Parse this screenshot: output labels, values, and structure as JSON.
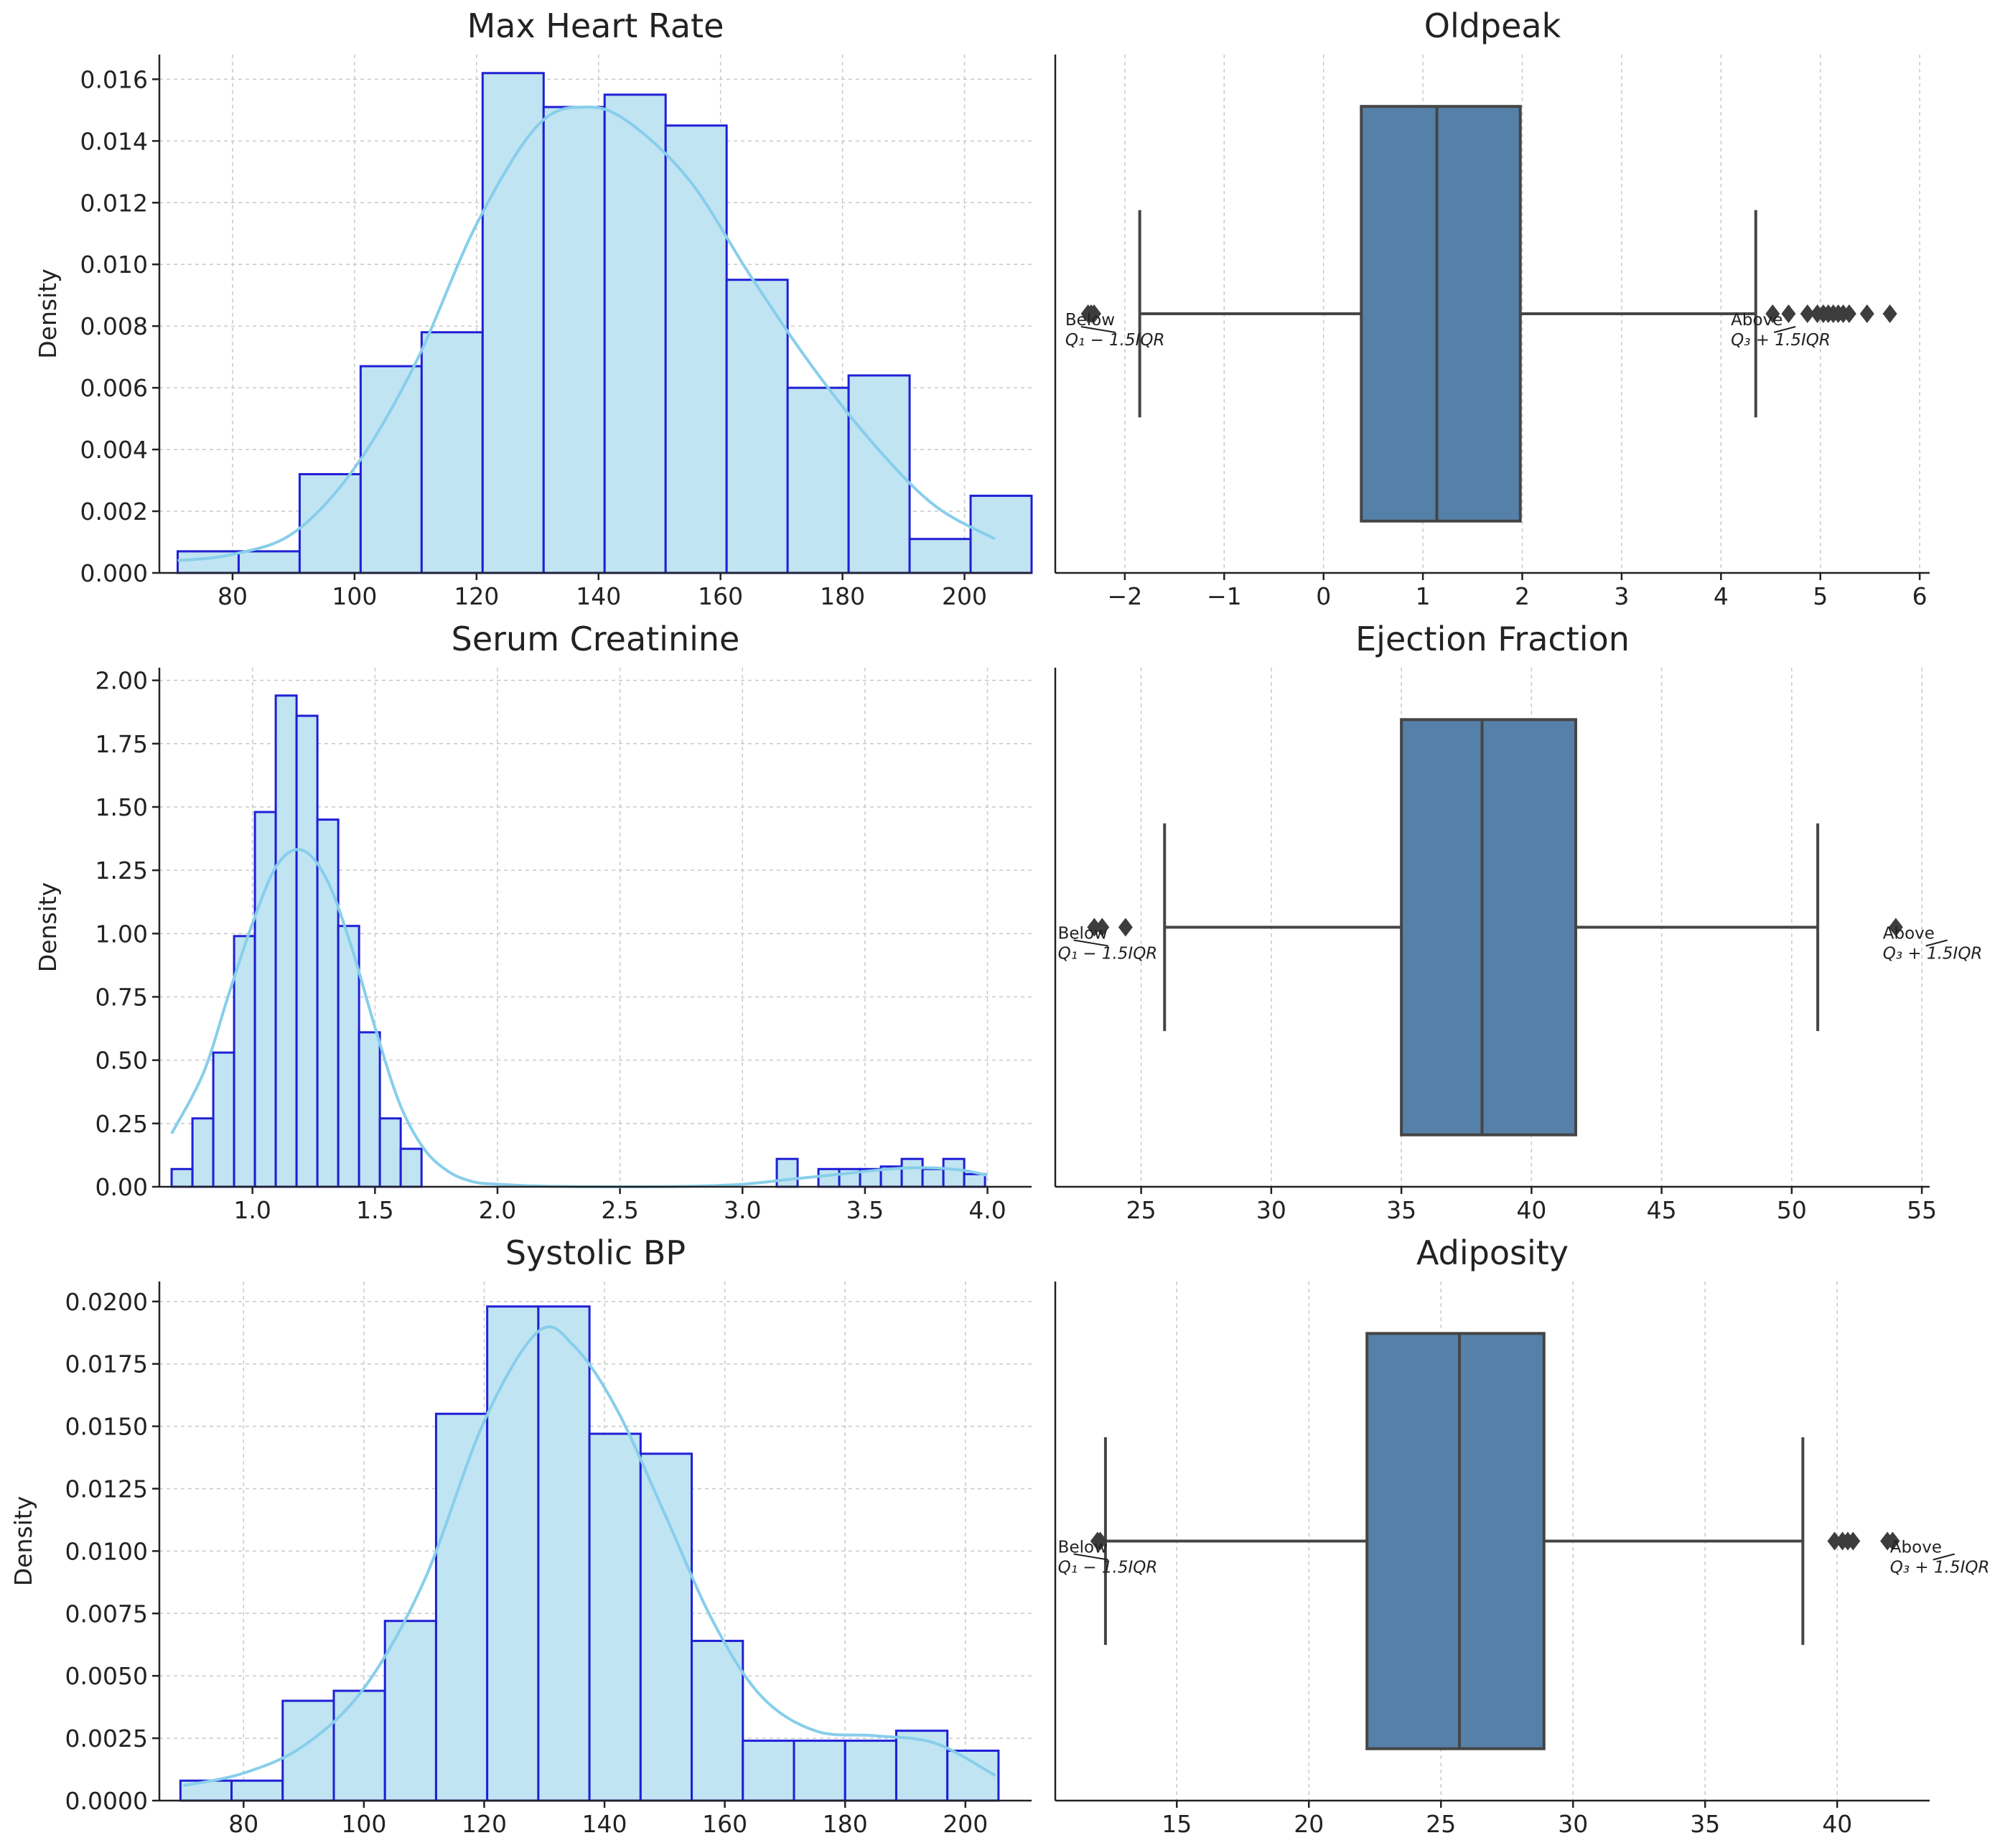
{
  "chart_data": [
    {
      "type": "histogram",
      "title": "Max Heart Rate",
      "ylabel": "Density",
      "xlim": [
        68,
        211
      ],
      "ylim": [
        0,
        0.0168
      ],
      "xticks": [
        80,
        100,
        120,
        140,
        160,
        180,
        200
      ],
      "xtick_labels": [
        "80",
        "100",
        "120",
        "140",
        "160",
        "180",
        "200"
      ],
      "yticks": [
        0,
        0.002,
        0.004,
        0.006,
        0.008,
        0.01,
        0.012,
        0.014,
        0.016
      ],
      "ytick_labels": [
        "0.000",
        "0.002",
        "0.004",
        "0.006",
        "0.008",
        "0.010",
        "0.012",
        "0.014",
        "0.016"
      ],
      "bins": [
        [
          71,
          81,
          0.0007
        ],
        [
          81,
          91,
          0.0007
        ],
        [
          91,
          101,
          0.0032
        ],
        [
          101,
          111,
          0.0067
        ],
        [
          111,
          121,
          0.0078
        ],
        [
          121,
          131,
          0.0162
        ],
        [
          131,
          141,
          0.0151
        ],
        [
          141,
          151,
          0.0155
        ],
        [
          151,
          161,
          0.0145
        ],
        [
          161,
          171,
          0.0095
        ],
        [
          171,
          181,
          0.006
        ],
        [
          181,
          191,
          0.0064
        ],
        [
          191,
          201,
          0.0011
        ],
        [
          201,
          211,
          0.0025
        ]
      ],
      "kde": [
        [
          71,
          0.0004
        ],
        [
          80,
          0.0006
        ],
        [
          90,
          0.0013
        ],
        [
          100,
          0.0034
        ],
        [
          110,
          0.0068
        ],
        [
          120,
          0.0113
        ],
        [
          130,
          0.0145
        ],
        [
          138,
          0.0151
        ],
        [
          145,
          0.0146
        ],
        [
          155,
          0.0127
        ],
        [
          165,
          0.0096
        ],
        [
          175,
          0.0067
        ],
        [
          185,
          0.0042
        ],
        [
          195,
          0.0022
        ],
        [
          205,
          0.0011
        ]
      ]
    },
    {
      "type": "boxplot",
      "title": "Oldpeak",
      "xlim": [
        -2.7,
        6.1
      ],
      "xticks": [
        -2,
        -1,
        0,
        1,
        2,
        3,
        4,
        5,
        6
      ],
      "xtick_labels": [
        "−2",
        "−1",
        "0",
        "1",
        "2",
        "3",
        "4",
        "5",
        "6"
      ],
      "q1": 0.38,
      "median": 1.14,
      "q3": 1.98,
      "whisker_low": -1.85,
      "whisker_high": 4.35,
      "outliers": [
        -2.37,
        -2.34,
        -2.31,
        4.52,
        4.68,
        4.87,
        4.97,
        5.03,
        5.08,
        5.13,
        5.18,
        5.23,
        5.29,
        5.47,
        5.7
      ],
      "annotations": [
        {
          "label": "Below",
          "formula": "Q₁ − 1.5IQR",
          "x": -2.6
        },
        {
          "label": "Above",
          "formula": "Q₃ + 1.5IQR",
          "x": 4.1
        }
      ]
    },
    {
      "type": "histogram",
      "title": "Serum Creatinine",
      "ylabel": "Density",
      "xlim": [
        0.62,
        4.18
      ],
      "ylim": [
        0,
        2.05
      ],
      "xticks": [
        1.0,
        1.5,
        2.0,
        2.5,
        3.0,
        3.5,
        4.0
      ],
      "xtick_labels": [
        "1.0",
        "1.5",
        "2.0",
        "2.5",
        "3.0",
        "3.5",
        "4.0"
      ],
      "yticks": [
        0,
        0.25,
        0.5,
        0.75,
        1.0,
        1.25,
        1.5,
        1.75,
        2.0
      ],
      "ytick_labels": [
        "0.00",
        "0.25",
        "0.50",
        "0.75",
        "1.00",
        "1.25",
        "1.50",
        "1.75",
        "2.00"
      ],
      "bins": [
        [
          0.67,
          0.755,
          0.07
        ],
        [
          0.755,
          0.84,
          0.27
        ],
        [
          0.84,
          0.925,
          0.53
        ],
        [
          0.925,
          1.01,
          0.99
        ],
        [
          1.01,
          1.095,
          1.48
        ],
        [
          1.095,
          1.18,
          1.94
        ],
        [
          1.18,
          1.265,
          1.86
        ],
        [
          1.265,
          1.35,
          1.45
        ],
        [
          1.35,
          1.435,
          1.03
        ],
        [
          1.435,
          1.52,
          0.61
        ],
        [
          1.52,
          1.605,
          0.27
        ],
        [
          1.605,
          1.69,
          0.15
        ],
        [
          3.14,
          3.225,
          0.11
        ],
        [
          3.31,
          3.395,
          0.07
        ],
        [
          3.395,
          3.48,
          0.07
        ],
        [
          3.48,
          3.565,
          0.07
        ],
        [
          3.565,
          3.65,
          0.08
        ],
        [
          3.65,
          3.735,
          0.11
        ],
        [
          3.735,
          3.82,
          0.07
        ],
        [
          3.82,
          3.905,
          0.11
        ],
        [
          3.905,
          3.99,
          0.05
        ]
      ],
      "kde": [
        [
          0.67,
          0.21
        ],
        [
          0.8,
          0.45
        ],
        [
          0.9,
          0.75
        ],
        [
          1.0,
          1.04
        ],
        [
          1.1,
          1.27
        ],
        [
          1.2,
          1.33
        ],
        [
          1.3,
          1.22
        ],
        [
          1.4,
          0.96
        ],
        [
          1.5,
          0.63
        ],
        [
          1.6,
          0.33
        ],
        [
          1.7,
          0.15
        ],
        [
          1.8,
          0.06
        ],
        [
          1.9,
          0.02
        ],
        [
          2.0,
          0.01
        ],
        [
          2.2,
          0.002
        ],
        [
          2.5,
          0.0
        ],
        [
          2.8,
          0.002
        ],
        [
          3.0,
          0.01
        ],
        [
          3.2,
          0.03
        ],
        [
          3.4,
          0.05
        ],
        [
          3.6,
          0.07
        ],
        [
          3.75,
          0.075
        ],
        [
          3.9,
          0.065
        ],
        [
          4.0,
          0.045
        ]
      ]
    },
    {
      "type": "boxplot",
      "title": "Ejection Fraction",
      "xlim": [
        21.7,
        55.3
      ],
      "xticks": [
        25,
        30,
        35,
        40,
        45,
        50,
        55
      ],
      "xtick_labels": [
        "25",
        "30",
        "35",
        "40",
        "45",
        "50",
        "55"
      ],
      "q1": 35.0,
      "median": 38.1,
      "q3": 41.7,
      "whisker_low": 25.9,
      "whisker_high": 51.0,
      "outliers": [
        23.2,
        23.5,
        24.4,
        54.0
      ],
      "annotations": [
        {
          "label": "Below",
          "formula": "Q₁ − 1.5IQR",
          "x": 21.8
        },
        {
          "label": "Above",
          "formula": "Q₃ + 1.5IQR",
          "x": 53.5
        }
      ]
    },
    {
      "type": "histogram",
      "title": "Systolic BP",
      "ylabel": "Density",
      "xlim": [
        66,
        211
      ],
      "ylim": [
        0,
        0.0208
      ],
      "xticks": [
        80,
        100,
        120,
        140,
        160,
        180,
        200
      ],
      "xtick_labels": [
        "80",
        "100",
        "120",
        "140",
        "160",
        "180",
        "200"
      ],
      "yticks": [
        0,
        0.0025,
        0.005,
        0.0075,
        0.01,
        0.0125,
        0.015,
        0.0175,
        0.02
      ],
      "ytick_labels": [
        "0.0000",
        "0.0025",
        "0.0050",
        "0.0075",
        "0.0100",
        "0.0125",
        "0.0150",
        "0.0175",
        "0.0200"
      ],
      "bins": [
        [
          69.5,
          78,
          0.0008
        ],
        [
          78,
          86.5,
          0.0008
        ],
        [
          86.5,
          95,
          0.004
        ],
        [
          95,
          103.5,
          0.0044
        ],
        [
          103.5,
          112,
          0.0072
        ],
        [
          112,
          120.5,
          0.0155
        ],
        [
          120.5,
          129,
          0.0198
        ],
        [
          129,
          137.5,
          0.0198
        ],
        [
          137.5,
          146,
          0.0147
        ],
        [
          146,
          154.5,
          0.0139
        ],
        [
          154.5,
          163,
          0.0064
        ],
        [
          163,
          171.5,
          0.0024
        ],
        [
          171.5,
          180,
          0.0024
        ],
        [
          180,
          188.5,
          0.0024
        ],
        [
          188.5,
          197,
          0.0028
        ],
        [
          197,
          205.5,
          0.002
        ]
      ],
      "kde": [
        [
          70,
          0.0006
        ],
        [
          80,
          0.0011
        ],
        [
          90,
          0.0022
        ],
        [
          100,
          0.0045
        ],
        [
          110,
          0.0088
        ],
        [
          120,
          0.0152
        ],
        [
          129,
          0.0188
        ],
        [
          135,
          0.0182
        ],
        [
          142,
          0.0157
        ],
        [
          150,
          0.0115
        ],
        [
          158,
          0.0072
        ],
        [
          166,
          0.0042
        ],
        [
          175,
          0.0028
        ],
        [
          185,
          0.0026
        ],
        [
          195,
          0.0023
        ],
        [
          205,
          0.001
        ]
      ]
    },
    {
      "type": "boxplot",
      "title": "Adiposity",
      "xlim": [
        10.4,
        43.5
      ],
      "xticks": [
        15,
        20,
        25,
        30,
        35,
        40
      ],
      "xtick_labels": [
        "15",
        "20",
        "25",
        "30",
        "35",
        "40"
      ],
      "q1": 22.2,
      "median": 25.7,
      "q3": 28.9,
      "whisker_low": 12.3,
      "whisker_high": 38.7,
      "outliers": [
        12.0,
        12.1,
        39.9,
        40.2,
        40.4,
        40.6,
        41.9,
        42.1
      ],
      "annotations": [
        {
          "label": "Below",
          "formula": "Q₁ − 1.5IQR",
          "x": 10.5
        },
        {
          "label": "Above",
          "formula": "Q₃ + 1.5IQR",
          "x": 42.0
        }
      ]
    }
  ],
  "colors": {
    "hist_fill": "#c0e4f2",
    "hist_edge": "#1f1fd6",
    "kde": "#87ceeb",
    "box_fill": "#5580a8",
    "box_line": "#454545"
  }
}
